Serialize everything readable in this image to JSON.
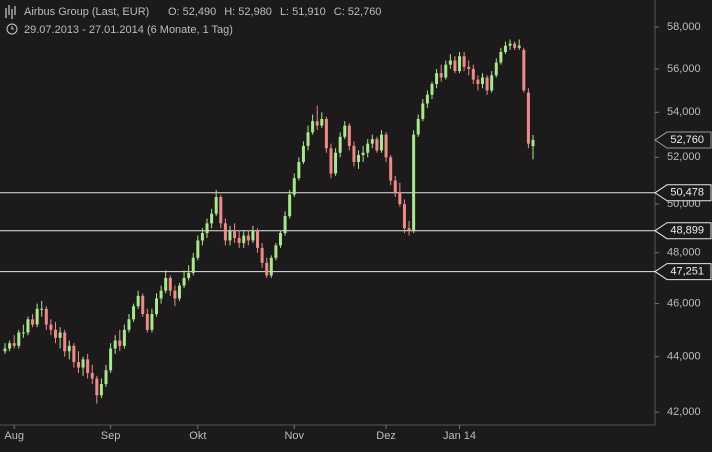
{
  "chart_data": {
    "type": "candlestick",
    "title": "Airbus Group (Last, EUR)",
    "subtitle": "29.07.2013 - 27.01.2014 (6 Monate, 1 Tag)",
    "info": [
      {
        "name": "O:",
        "value": 52490,
        "label": "52,490"
      },
      {
        "name": "H:",
        "value": 52980,
        "label": "52,980"
      },
      {
        "name": "L:",
        "value": 51910,
        "label": "51,910"
      },
      {
        "name": "C:",
        "value": 52760,
        "label": "52,760"
      }
    ],
    "log_scale": true,
    "ylim": [
      41550,
      59330
    ],
    "yticks": [
      {
        "value": 42000,
        "label": "42,000"
      },
      {
        "value": 44000,
        "label": "44,000"
      },
      {
        "value": 46000,
        "label": "46,000"
      },
      {
        "value": 48000,
        "label": "48,000"
      },
      {
        "value": 50000,
        "label": "50,000"
      },
      {
        "value": 52000,
        "label": "52,000"
      },
      {
        "value": 54000,
        "label": "54,000"
      },
      {
        "value": 56000,
        "label": "56,000"
      },
      {
        "value": 58000,
        "label": "58,000"
      }
    ],
    "xticks": [
      {
        "value": 2,
        "label": "Aug"
      },
      {
        "value": 23,
        "label": "Sep"
      },
      {
        "value": 42,
        "label": "Okt"
      },
      {
        "value": 63,
        "label": "Nov"
      },
      {
        "value": 83,
        "label": "Dez"
      },
      {
        "value": 99,
        "label": "Jan 14"
      }
    ],
    "up_color": "#a6e88a",
    "down_color": "#f08a8a",
    "levels": [
      {
        "value": 50478,
        "label": "50,478"
      },
      {
        "value": 48899,
        "label": "48,899"
      },
      {
        "value": 47251,
        "label": "47,251"
      }
    ],
    "last_price": {
      "value": 52760,
      "label": "52,760"
    },
    "ohlc": [
      [
        44200,
        44500,
        44100,
        44300
      ],
      [
        44300,
        44600,
        44200,
        44500
      ],
      [
        44500,
        44800,
        44300,
        44400
      ],
      [
        44400,
        45000,
        44300,
        44900
      ],
      [
        44900,
        45200,
        44700,
        44900
      ],
      [
        44900,
        45500,
        44800,
        45400
      ],
      [
        45400,
        45600,
        45100,
        45200
      ],
      [
        45200,
        46000,
        45100,
        45800
      ],
      [
        45800,
        46100,
        45500,
        45800
      ],
      [
        45800,
        45900,
        45000,
        45200
      ],
      [
        45200,
        45400,
        44800,
        45000
      ],
      [
        45000,
        45300,
        44500,
        44700
      ],
      [
        44700,
        45100,
        44300,
        44900
      ],
      [
        44900,
        45000,
        44000,
        44200
      ],
      [
        44200,
        44600,
        43900,
        44400
      ],
      [
        44400,
        44500,
        43600,
        43800
      ],
      [
        43800,
        44200,
        43400,
        43600
      ],
      [
        43600,
        44000,
        43300,
        43900
      ],
      [
        43900,
        44100,
        43200,
        43400
      ],
      [
        43400,
        43700,
        43000,
        43200
      ],
      [
        43200,
        43300,
        42300,
        42600
      ],
      [
        42600,
        43200,
        42500,
        43000
      ],
      [
        43000,
        43700,
        42900,
        43500
      ],
      [
        43500,
        44500,
        43400,
        44300
      ],
      [
        44300,
        44800,
        44100,
        44600
      ],
      [
        44600,
        45000,
        44200,
        44400
      ],
      [
        44400,
        45200,
        44300,
        45000
      ],
      [
        45000,
        45600,
        44900,
        45400
      ],
      [
        45400,
        46000,
        45300,
        45900
      ],
      [
        45900,
        46500,
        45800,
        46300
      ],
      [
        46300,
        46400,
        45500,
        45600
      ],
      [
        45600,
        45800,
        44900,
        45000
      ],
      [
        45000,
        45800,
        44900,
        45600
      ],
      [
        45600,
        46400,
        45500,
        46200
      ],
      [
        46200,
        46700,
        46000,
        46500
      ],
      [
        46500,
        47300,
        46400,
        47000
      ],
      [
        47000,
        47100,
        46300,
        46500
      ],
      [
        46500,
        46700,
        45900,
        46200
      ],
      [
        46200,
        46800,
        46100,
        46700
      ],
      [
        46700,
        47300,
        46600,
        47000
      ],
      [
        47000,
        47500,
        46900,
        47200
      ],
      [
        47200,
        48000,
        47100,
        47800
      ],
      [
        47800,
        48700,
        47700,
        48500
      ],
      [
        48500,
        49000,
        48300,
        48800
      ],
      [
        48800,
        49400,
        48600,
        49200
      ],
      [
        49200,
        49800,
        49000,
        49600
      ],
      [
        49600,
        50600,
        49500,
        50300
      ],
      [
        50300,
        50400,
        49000,
        49200
      ],
      [
        49200,
        49400,
        48300,
        48500
      ],
      [
        48500,
        49100,
        48300,
        48900
      ],
      [
        48900,
        49200,
        48400,
        48600
      ],
      [
        48600,
        48900,
        48200,
        48400
      ],
      [
        48400,
        48900,
        48200,
        48700
      ],
      [
        48700,
        48900,
        48300,
        48500
      ],
      [
        48500,
        49100,
        48400,
        48900
      ],
      [
        48900,
        49000,
        48000,
        48200
      ],
      [
        48200,
        48400,
        47400,
        47600
      ],
      [
        47600,
        47800,
        47000,
        47100
      ],
      [
        47100,
        47900,
        47000,
        47800
      ],
      [
        47800,
        48400,
        47700,
        48300
      ],
      [
        48300,
        48900,
        48200,
        48800
      ],
      [
        48800,
        49700,
        48700,
        49500
      ],
      [
        49500,
        50600,
        49400,
        50400
      ],
      [
        50400,
        51300,
        50300,
        51100
      ],
      [
        51100,
        52000,
        51000,
        51800
      ],
      [
        51800,
        52700,
        51700,
        52500
      ],
      [
        52500,
        53400,
        52300,
        53100
      ],
      [
        53100,
        53900,
        53000,
        53600
      ],
      [
        53600,
        54300,
        53200,
        53400
      ],
      [
        53400,
        54000,
        53300,
        53700
      ],
      [
        53700,
        53800,
        52200,
        52400
      ],
      [
        52400,
        52600,
        51100,
        51300
      ],
      [
        51300,
        52400,
        51200,
        52200
      ],
      [
        52200,
        53100,
        52000,
        52900
      ],
      [
        52900,
        53600,
        52800,
        53400
      ],
      [
        53400,
        53500,
        52300,
        52500
      ],
      [
        52500,
        52700,
        51600,
        51800
      ],
      [
        51800,
        52300,
        51500,
        52100
      ],
      [
        52100,
        52500,
        51800,
        52200
      ],
      [
        52200,
        52800,
        52000,
        52600
      ],
      [
        52600,
        53000,
        52400,
        52800
      ],
      [
        52800,
        52900,
        52200,
        52300
      ],
      [
        52300,
        53200,
        52200,
        53000
      ],
      [
        53000,
        53100,
        51800,
        52000
      ],
      [
        52000,
        52100,
        50800,
        51000
      ],
      [
        51000,
        51200,
        50300,
        50500
      ],
      [
        50500,
        50900,
        49900,
        50000
      ],
      [
        50000,
        50200,
        48800,
        49000
      ],
      [
        49000,
        49300,
        48700,
        48900
      ],
      [
        48900,
        53200,
        48800,
        53000
      ],
      [
        53000,
        53900,
        52900,
        53700
      ],
      [
        53700,
        54600,
        53600,
        54400
      ],
      [
        54400,
        55000,
        54200,
        54800
      ],
      [
        54800,
        55400,
        54600,
        55300
      ],
      [
        55300,
        56000,
        55100,
        55800
      ],
      [
        55800,
        56200,
        55400,
        55600
      ],
      [
        55600,
        56400,
        55500,
        56200
      ],
      [
        56200,
        56700,
        56000,
        56400
      ],
      [
        56400,
        56600,
        55800,
        55900
      ],
      [
        55900,
        56800,
        55800,
        56600
      ],
      [
        56600,
        56800,
        55900,
        56100
      ],
      [
        56100,
        56400,
        55700,
        56000
      ],
      [
        56000,
        56200,
        55300,
        55500
      ],
      [
        55500,
        55700,
        55000,
        55300
      ],
      [
        55300,
        55800,
        55100,
        55600
      ],
      [
        55600,
        55700,
        54800,
        55000
      ],
      [
        55000,
        55900,
        54900,
        55700
      ],
      [
        55700,
        56500,
        55600,
        56300
      ],
      [
        56300,
        57000,
        56200,
        56800
      ],
      [
        56800,
        57300,
        56700,
        57100
      ],
      [
        57100,
        57400,
        56900,
        57200
      ],
      [
        57200,
        57300,
        56900,
        57000
      ],
      [
        57000,
        57400,
        56900,
        57100
      ],
      [
        56900,
        57000,
        54900,
        55000
      ],
      [
        54900,
        55100,
        52400,
        52600
      ],
      [
        52490,
        52980,
        51910,
        52760
      ]
    ]
  }
}
